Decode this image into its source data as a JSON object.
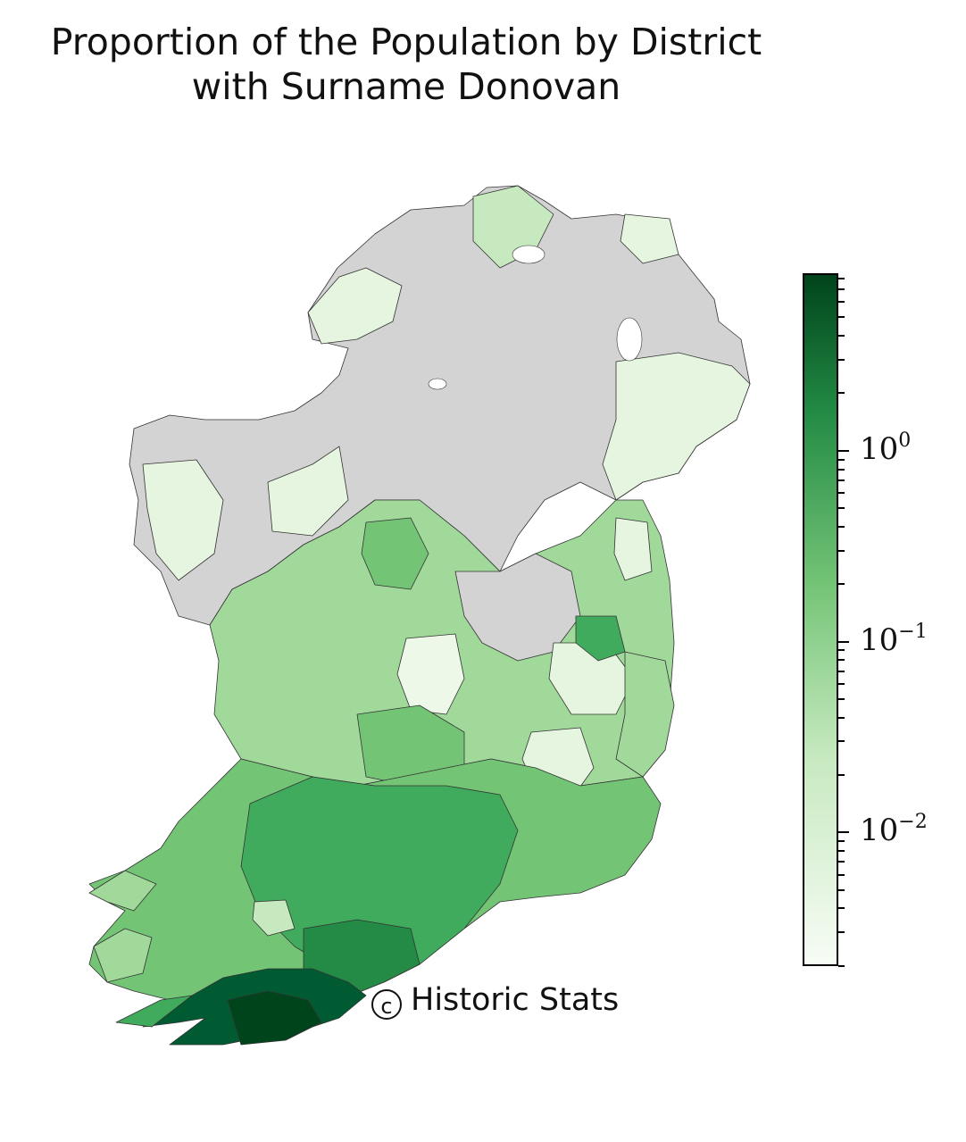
{
  "title": {
    "line1": "Proportion of the Population by District",
    "line2": "with Surname Donovan"
  },
  "credit": {
    "symbol": "c",
    "text": "Historic Stats"
  },
  "colorbar": {
    "scale": "log",
    "colormap": "Greens",
    "color_low": "#f7fcf5",
    "color_high": "#00441b",
    "no_data_color": "#d3d3d3",
    "ticks": [
      {
        "value": 1,
        "base": "10",
        "exponent": "0"
      },
      {
        "value": 0.1,
        "base": "10",
        "exponent": "−1"
      },
      {
        "value": 0.01,
        "base": "10",
        "exponent": "−2"
      }
    ]
  },
  "map_regions": {
    "north_no_data": "#d3d3d3",
    "north_light": "#e5f5e0",
    "midlands": "#a1d99b",
    "south_medium": "#74c476",
    "munster": "#41ab5d",
    "cork": "#238b45",
    "west_cork": "#005a32"
  }
}
